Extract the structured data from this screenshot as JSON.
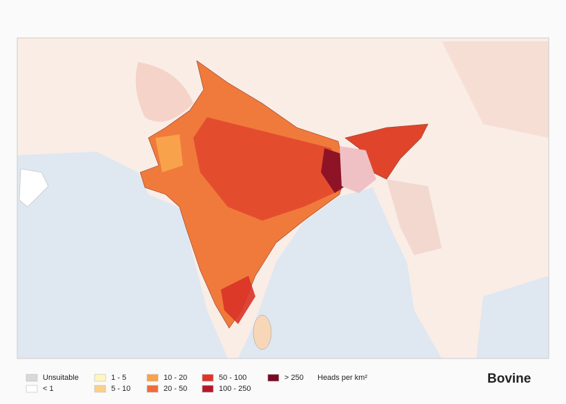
{
  "title": "Bovine",
  "legend": {
    "unit": "Heads per km²",
    "items": [
      {
        "label": "Unsuitable",
        "color": "#d9d9d9"
      },
      {
        "label": "< 1",
        "color": "#ffffff"
      },
      {
        "label": "1 - 5",
        "color": "#fff6c2"
      },
      {
        "label": "5 - 10",
        "color": "#fdcf8a"
      },
      {
        "label": "10 - 20",
        "color": "#f9a24c"
      },
      {
        "label": "20 - 50",
        "color": "#f06c38"
      },
      {
        "label": "50 - 100",
        "color": "#df3428"
      },
      {
        "label": "100 - 250",
        "color": "#b5172a"
      },
      {
        "label": "> 250",
        "color": "#7a0a24"
      }
    ]
  }
}
